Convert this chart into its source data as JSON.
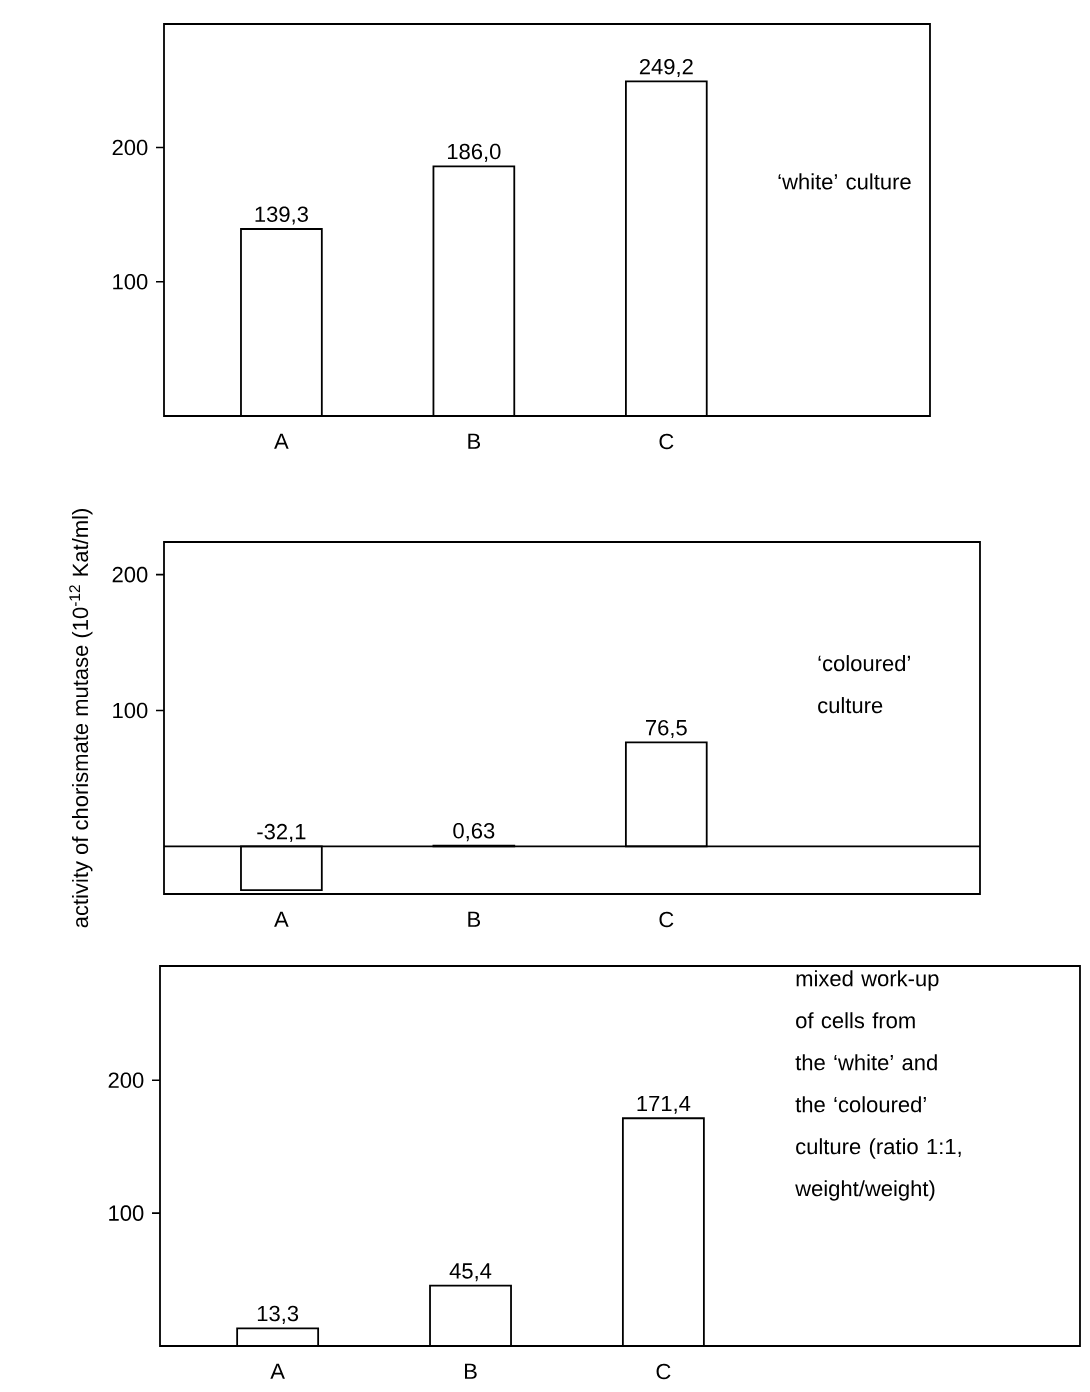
{
  "chart_data": [
    {
      "type": "bar",
      "categories": [
        "A",
        "B",
        "C"
      ],
      "values": [
        139.3,
        186.0,
        249.2
      ],
      "value_labels": [
        "139,3",
        "186,0",
        "249,2"
      ],
      "color": "#ffffff",
      "ylim": [
        0,
        292
      ],
      "yticks": [
        100,
        200
      ],
      "annotations": [
        "‘white’ culture"
      ]
    },
    {
      "type": "bar",
      "categories": [
        "A",
        "B",
        "C"
      ],
      "values": [
        -32.1,
        0.63,
        76.5
      ],
      "value_labels": [
        "-32,1",
        "0,63",
        "76,5"
      ],
      "color": "#ffffff",
      "ylim": [
        -35,
        224
      ],
      "yticks": [
        100,
        200
      ],
      "ylabel": "activity of chorismate mutase (10$^{-12}$ Kat/ml)",
      "annotations": [
        "‘coloured’ culture"
      ]
    },
    {
      "type": "bar",
      "categories": [
        "A",
        "B",
        "C"
      ],
      "values": [
        13.3,
        45.4,
        171.4
      ],
      "value_labels": [
        "13,3",
        "45,4",
        "171,4"
      ],
      "color": "#ffffff",
      "ylim": [
        0,
        286
      ],
      "yticks": [
        100,
        200
      ],
      "annotations": [
        "mixed work-up of cells from the ‘white’ and the ‘coloured’ culture (ratio 1:1, weight/weight)"
      ]
    }
  ]
}
